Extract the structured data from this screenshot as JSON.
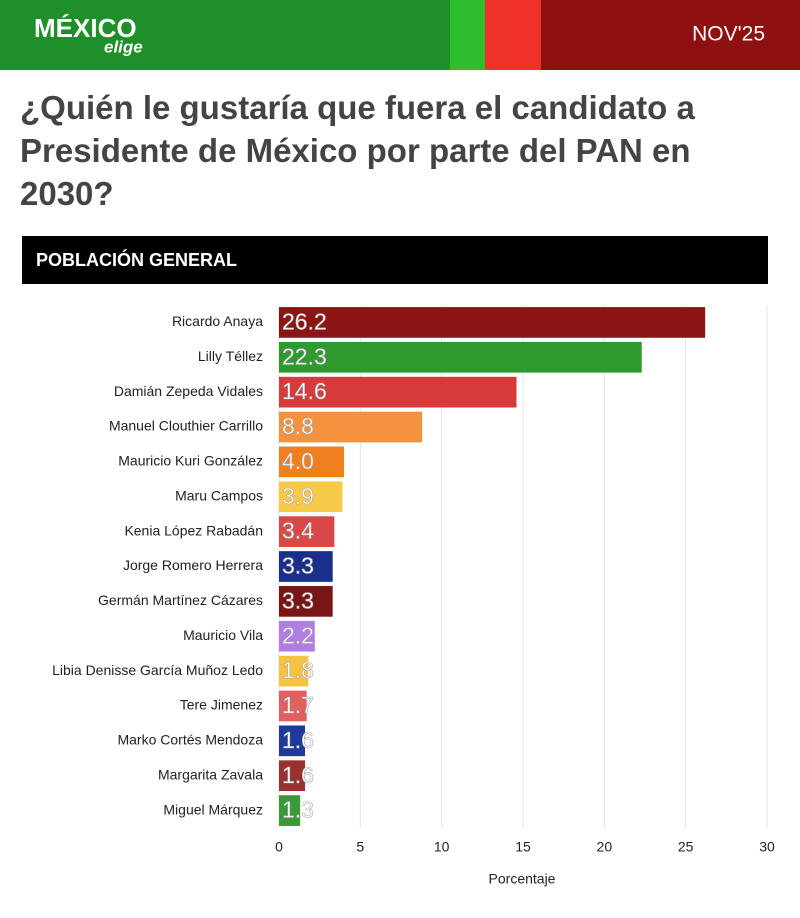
{
  "header": {
    "logo": "MÉXICO",
    "logo_sub": "elige",
    "date": "NOV'25"
  },
  "chart_data": {
    "type": "barh",
    "title": "¿Quién le gustaría que fuera el candidato a Presidente de México por parte del PAN en 2030?",
    "subtitle": "POBLACIÓN GENERAL",
    "categories": [
      "Ricardo Anaya",
      "Lilly Téllez",
      "Damián Zepeda Vidales",
      "Manuel Clouthier Carrillo",
      "Mauricio Kuri González",
      "Maru Campos",
      "Kenia López Rabadán",
      "Jorge Romero Herrera",
      "Germán Martínez Cázares",
      "Mauricio Vila",
      "Libia Denisse García Muñoz Ledo",
      "Tere Jimenez",
      "Marko Cortés Mendoza",
      "Margarita Zavala",
      "Miguel Márquez"
    ],
    "values": [
      26.2,
      22.3,
      14.6,
      8.8,
      4.0,
      3.9,
      3.4,
      3.3,
      3.3,
      2.2,
      1.8,
      1.7,
      1.6,
      1.6,
      1.3
    ],
    "value_labels": [
      "26.2",
      "22.3",
      "14.6",
      "8.8",
      "4.0",
      "3.9",
      "3.4",
      "3.3",
      "3.3",
      "2.2",
      "1.8",
      "1.7",
      "1.6",
      "1.6",
      "1.3"
    ],
    "colors": [
      "#8b1414",
      "#2e9a2e",
      "#d63a3a",
      "#f5923e",
      "#f07f1e",
      "#f7c948",
      "#d94848",
      "#1a2e8c",
      "#7a1515",
      "#b07ee0",
      "#f5c242",
      "#e06060",
      "#1f3a9c",
      "#9a3030",
      "#3a9a3a"
    ],
    "xlabel": "Porcentaje",
    "xlim": [
      0,
      30
    ],
    "xticks": [
      0,
      5,
      10,
      15,
      20,
      25,
      30
    ],
    "grid": true
  }
}
